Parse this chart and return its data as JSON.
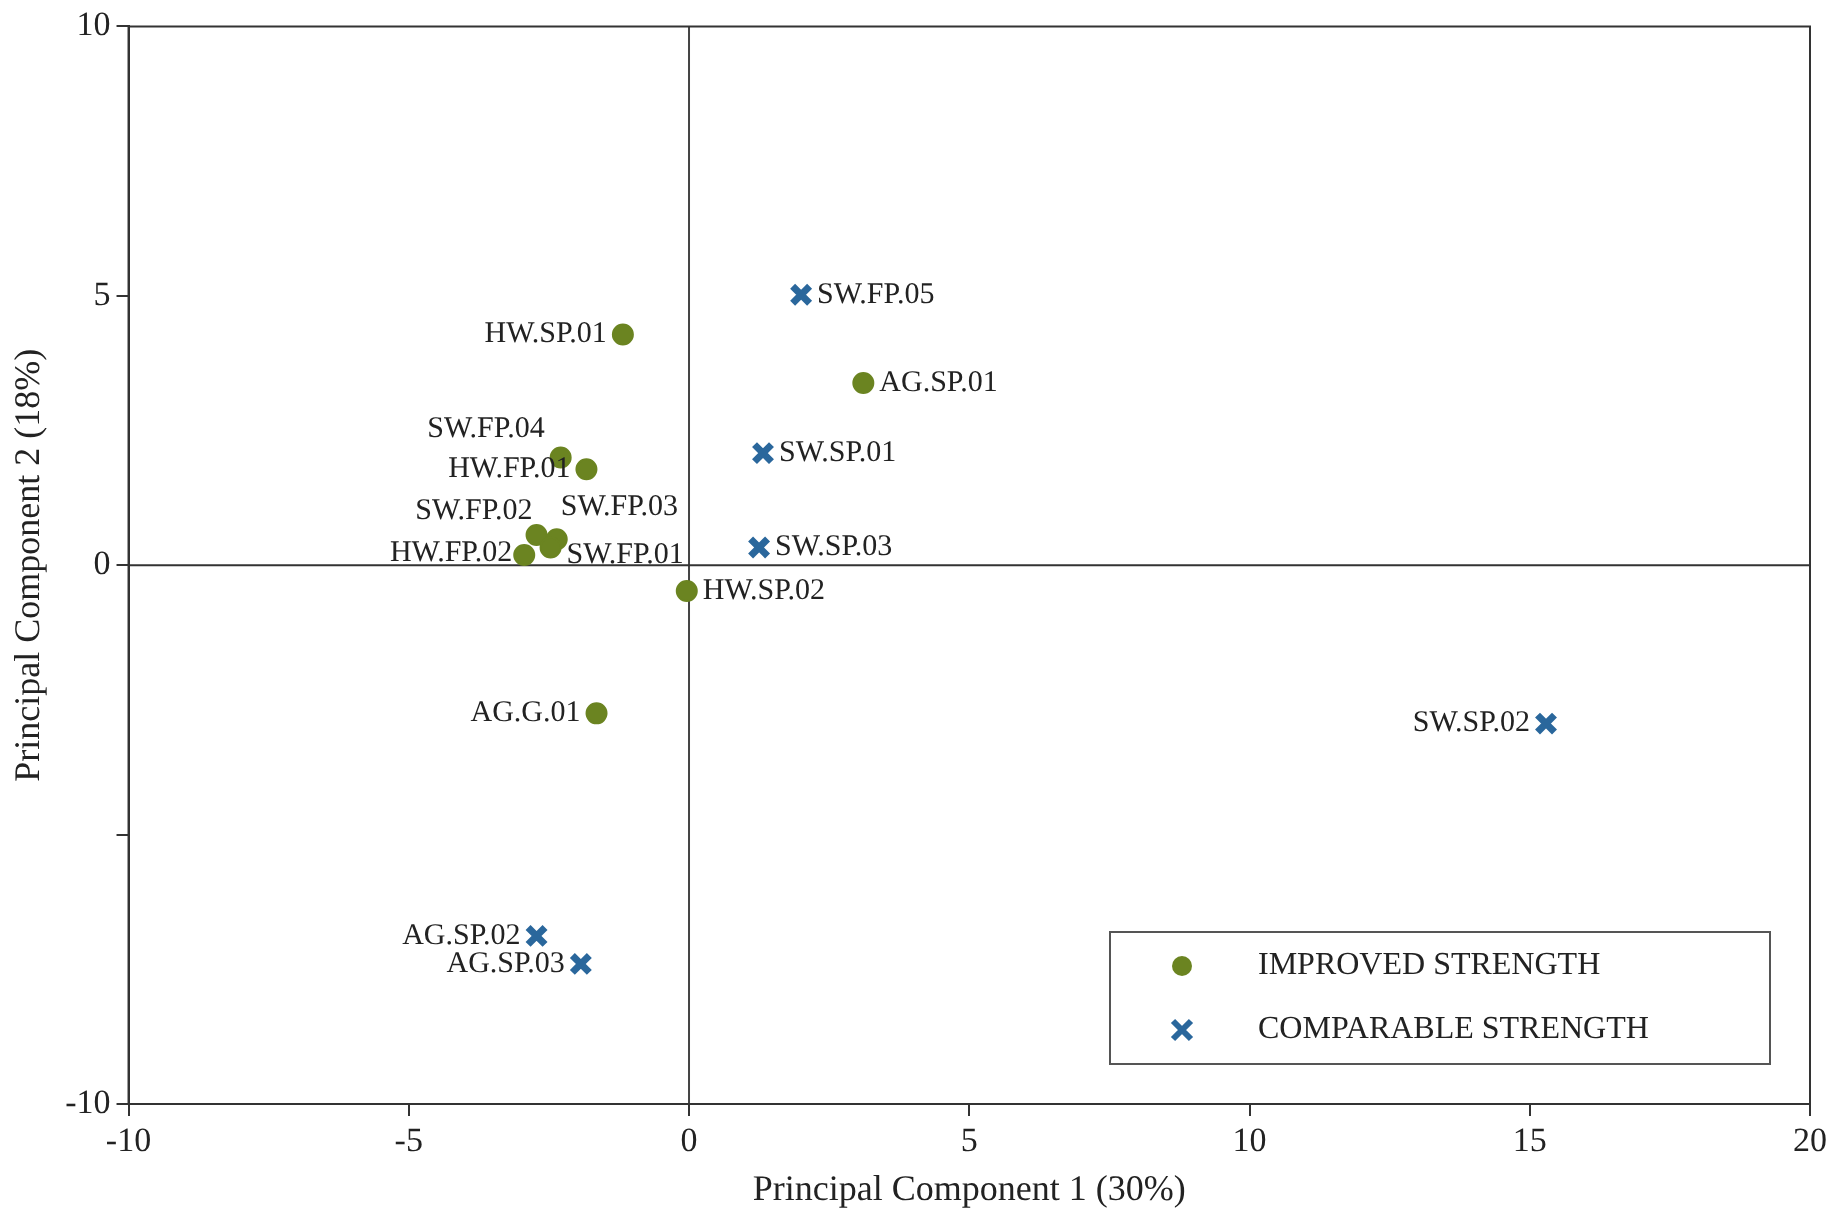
{
  "chart_data": {
    "type": "scatter",
    "xlabel": "Principal Component 1 (30%)",
    "ylabel": "Principal Component 2 (18%)",
    "xlim": [
      -10,
      20
    ],
    "xticks": [
      -10,
      -5,
      0,
      5,
      10,
      15,
      20
    ],
    "ylim": [
      -10,
      10
    ],
    "yticks": [
      -10,
      {
        "value": -5,
        "label": null
      },
      0,
      5,
      10
    ],
    "grid": false,
    "legend": "bottom right",
    "ref_lines": [
      {
        "axis": "x",
        "value": 0,
        "color": "#444444"
      },
      {
        "axis": "y",
        "value": 0,
        "color": "#333333"
      }
    ],
    "series": [
      {
        "name": "IMPROVED STRENGTH",
        "color": "#6b8421",
        "marker": "circle",
        "x": [
          -1.18,
          3.11,
          -2.29,
          -1.83,
          -2.72,
          -2.36,
          -2.47,
          -2.94,
          -0.04,
          -1.65
        ],
        "values": [
          4.28,
          3.38,
          2.0,
          1.78,
          0.56,
          0.48,
          0.33,
          0.19,
          -0.48,
          -2.75
        ]
      },
      {
        "name": "COMPARABLE STRENGTH",
        "color": "#2a679c",
        "marker": "cross",
        "x": [
          2.0,
          1.32,
          1.25,
          15.29,
          -2.72,
          -1.93
        ],
        "values": [
          5.02,
          2.08,
          0.33,
          -2.94,
          -6.88,
          -7.4
        ]
      }
    ],
    "annotations": [
      {
        "text": "HW.SP.01",
        "x": -1.18,
        "y": 4.28
      },
      {
        "text": "AG.SP.01",
        "x": 3.11,
        "y": 3.38
      },
      {
        "text": "SW.FP.04",
        "x": -2.29,
        "y": 2.0
      },
      {
        "text": "HW.FP.01",
        "x": -1.83,
        "y": 1.78
      },
      {
        "text": "SW.FP.02",
        "x": -2.72,
        "y": 0.56
      },
      {
        "text": "SW.FP.03",
        "x": -2.36,
        "y": 0.48
      },
      {
        "text": "SW.FP.01",
        "x": -2.47,
        "y": 0.33
      },
      {
        "text": "HW.FP.02",
        "x": -2.94,
        "y": 0.19
      },
      {
        "text": "HW.SP.02",
        "x": -0.04,
        "y": -0.48
      },
      {
        "text": "AG.G.01",
        "x": -1.65,
        "y": -2.75
      },
      {
        "text": "SW.FP.05",
        "x": 2.0,
        "y": 5.02
      },
      {
        "text": "SW.SP.01",
        "x": 1.32,
        "y": 2.08
      },
      {
        "text": "SW.SP.03",
        "x": 1.25,
        "y": 0.33
      },
      {
        "text": "SW.SP.02",
        "x": 15.29,
        "y": -2.94
      },
      {
        "text": "AG.SP.02",
        "x": -2.72,
        "y": -6.88
      },
      {
        "text": "AG.SP.03",
        "x": -1.93,
        "y": -7.4
      }
    ]
  }
}
